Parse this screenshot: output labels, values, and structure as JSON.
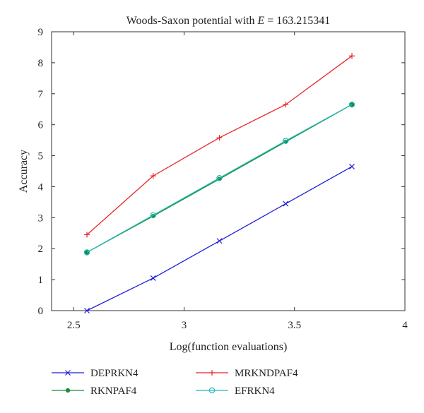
{
  "chart_data": {
    "type": "line",
    "title": "Woods-Saxon potential with E = 163.215341",
    "title_parts": {
      "prefix": "Woods-Saxon potential with ",
      "variable": "E",
      "suffix": " = 163.215341"
    },
    "xlabel": "Log(function evaluations)",
    "ylabel": "Accuracy",
    "xlim": [
      2.4,
      4
    ],
    "ylim": [
      0,
      9
    ],
    "xticks": [
      2.5,
      3,
      3.5,
      4
    ],
    "xtick_labels": [
      "2.5",
      "3",
      "3.5",
      "4"
    ],
    "yticks": [
      0,
      1,
      2,
      3,
      4,
      5,
      6,
      7,
      8,
      9
    ],
    "ytick_labels": [
      "0",
      "1",
      "2",
      "3",
      "4",
      "5",
      "6",
      "7",
      "8",
      "9"
    ],
    "grid": false,
    "legend_position": "bottom",
    "x": [
      2.56,
      2.86,
      3.16,
      3.46,
      3.76
    ],
    "series": [
      {
        "name": "DEPRKN4",
        "color": "#1f1fd6",
        "marker": "x",
        "values": [
          0.0,
          1.05,
          2.25,
          3.45,
          4.65
        ]
      },
      {
        "name": "MRKNDPAF4",
        "color": "#e8262a",
        "marker": "+",
        "values": [
          2.45,
          4.35,
          5.58,
          6.65,
          8.22
        ]
      },
      {
        "name": "RKNPAF4",
        "color": "#1c8a3a",
        "marker": "dot",
        "values": [
          1.88,
          3.05,
          4.25,
          5.45,
          6.65
        ]
      },
      {
        "name": "EFRKN4",
        "color": "#22b8b8",
        "marker": "circle",
        "values": [
          1.88,
          3.08,
          4.28,
          5.48,
          6.65
        ]
      }
    ]
  }
}
